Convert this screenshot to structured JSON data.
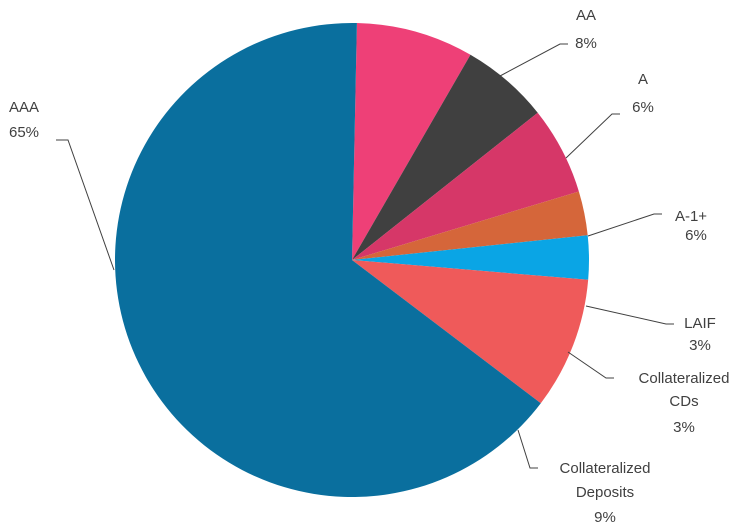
{
  "chart_data": {
    "type": "pie",
    "start_angle_deg": 1.19,
    "direction": "clockwise-from-top",
    "slices": [
      {
        "name": "AA",
        "pct_label": "8%",
        "value": 8,
        "color": "#EE4077"
      },
      {
        "name": "A",
        "pct_label": "6%",
        "value": 6,
        "color": "#404040"
      },
      {
        "name": "A-1+",
        "pct_label": "6%",
        "value": 6,
        "color": "#D63768"
      },
      {
        "name": "LAIF",
        "pct_label": "3%",
        "value": 3,
        "color": "#D5663A"
      },
      {
        "name": "Collateralized CDs",
        "name_lines": [
          "Collateralized",
          "CDs"
        ],
        "pct_label": "3%",
        "value": 3,
        "color": "#0AA5E5"
      },
      {
        "name": "Collateralized Deposits",
        "name_lines": [
          "Collateralized",
          "Deposits"
        ],
        "pct_label": "9%",
        "value": 9,
        "color": "#EF5A5A"
      },
      {
        "name": "AAA",
        "pct_label": "65%",
        "value": 65,
        "color": "#0A6F9E"
      }
    ]
  }
}
